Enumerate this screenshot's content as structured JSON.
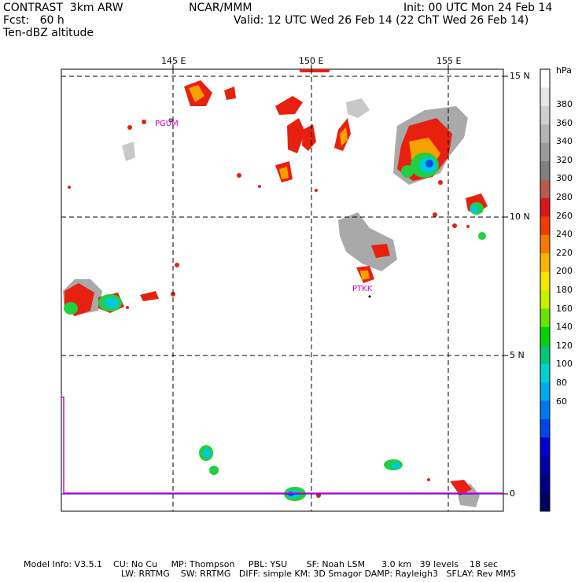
{
  "header": {
    "model": "CONTRAST  3km ARW",
    "org": "NCAR/MMM",
    "init": "Init: 00 UTC Mon 24 Feb 14",
    "fcst": "Fcst:   60 h",
    "valid": "Valid: 12 UTC Wed 26 Feb 14 (22 ChT Wed 26 Feb 14)",
    "field": "Ten-dBZ altitude"
  },
  "map": {
    "lon_labels": [
      "145 E",
      "150 E",
      "155 E"
    ],
    "lat_labels": [
      "15 N",
      "10 N",
      "5 N",
      "0"
    ],
    "stations": [
      "PGUM",
      "PTKK"
    ]
  },
  "colorbar": {
    "unit": "hPa",
    "labels": [
      "380",
      "360",
      "340",
      "320",
      "300",
      "280",
      "260",
      "240",
      "220",
      "200",
      "180",
      "160",
      "140",
      "120",
      "100",
      "80",
      "60"
    ],
    "colors": [
      "#ffffff",
      "#e6e6e6",
      "#cfcfcf",
      "#b4b4b4",
      "#9a9a9a",
      "#808080",
      "#b85a50",
      "#d81818",
      "#f03c00",
      "#f87800",
      "#f8b400",
      "#f8e600",
      "#c8f000",
      "#64e600",
      "#00d200",
      "#00c878",
      "#00d2d2",
      "#00aaf0",
      "#0078f0",
      "#0046e6",
      "#0000d2",
      "#0000aa",
      "#000082",
      "#000064"
    ]
  },
  "footer": {
    "line1": "Model Info: V3.5.1    CU: No Cu     MP: Thompson     PBL: YSU       SF: Noah LSM      3.0 km   39 levels    18 sec",
    "line2": "LW: RRTMG    SW: RRTMG   DIFF: simple KM: 3D Smagor DAMP: Rayleigh3   SFLAY: Rev MM5"
  }
}
